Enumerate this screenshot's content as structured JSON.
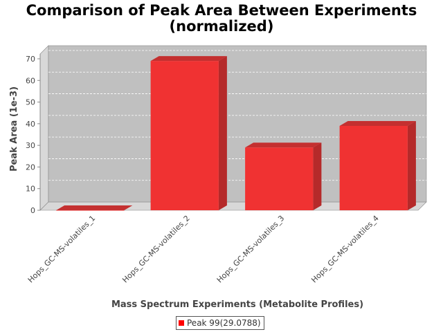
{
  "colors": {
    "bar_front": "#f03232",
    "bar_side": "#b52a2a",
    "bar_top": "#c43030",
    "plot_bg": "#c0c0c0",
    "plot_side": "#d8d8d8"
  },
  "chart_data": {
    "type": "bar",
    "title": "Comparison of Peak Area Between Experiments",
    "subtitle": "(normalized)",
    "xlabel": "Mass Spectrum Experiments (Metabolite Profiles)",
    "ylabel": "Peak Area (1e-3)",
    "categories": [
      "Hops_GC-MS-volatiles_1",
      "Hops_GC-MS-volatiles_2",
      "Hops_GC-MS-volatiles_3",
      "Hops_GC-MS-volatiles_4"
    ],
    "series": [
      {
        "name": "Peak 99(29.0788)",
        "values": [
          0,
          69,
          29,
          39
        ]
      }
    ],
    "ylim": [
      0,
      70
    ],
    "yticks": [
      0,
      10,
      20,
      30,
      40,
      50,
      60,
      70
    ],
    "grid": true,
    "legend": "bottom"
  }
}
